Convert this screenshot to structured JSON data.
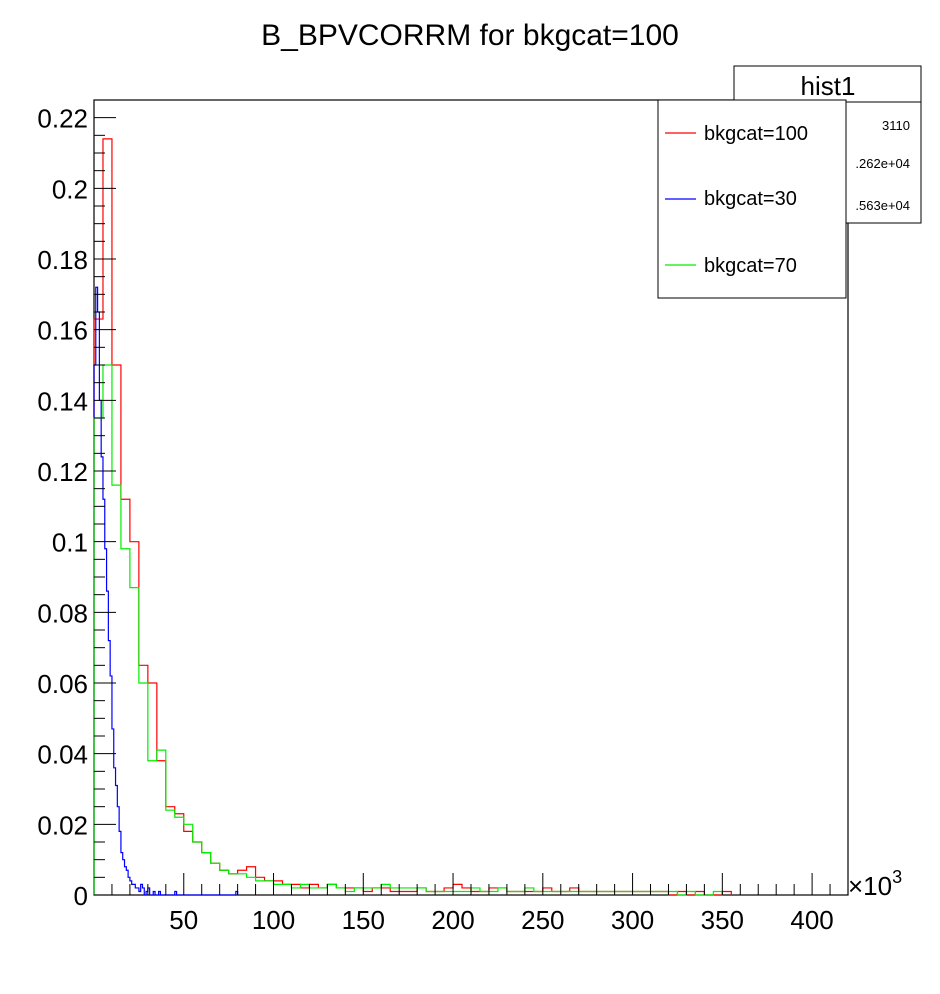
{
  "chart_data": {
    "type": "step-histogram",
    "title": "B_BPVCORRM for bkgcat=100",
    "xlabel": "",
    "ylabel": "",
    "x_exponent_label": "×10",
    "x_exponent_power": "3",
    "x_scale": 1000,
    "xlim": [
      0,
      420000
    ],
    "ylim": [
      0,
      0.225
    ],
    "x_ticks": [
      50000,
      100000,
      150000,
      200000,
      250000,
      300000,
      350000,
      400000
    ],
    "x_tick_labels": [
      "50",
      "100",
      "150",
      "200",
      "250",
      "300",
      "350",
      "400"
    ],
    "y_ticks": [
      0,
      0.02,
      0.04,
      0.06,
      0.08,
      0.1,
      0.12,
      0.14,
      0.16,
      0.18,
      0.2,
      0.22
    ],
    "y_tick_labels": [
      "0",
      "0.02",
      "0.04",
      "0.06",
      "0.08",
      "0.1",
      "0.12",
      "0.14",
      "0.16",
      "0.18",
      "0.2",
      "0.22"
    ],
    "legend_position": "top-right",
    "stats_box": {
      "title": "hist1",
      "values": [
        "3110",
        ".262e+04",
        ".563e+04"
      ]
    },
    "series": [
      {
        "name": "bkgcat=100",
        "color": "#ff0000",
        "bin_width": 5000,
        "x_start": 0,
        "values": [
          0.163,
          0.214,
          0.15,
          0.112,
          0.1,
          0.065,
          0.06,
          0.038,
          0.025,
          0.023,
          0.018,
          0.015,
          0.012,
          0.009,
          0.007,
          0.006,
          0.007,
          0.008,
          0.005,
          0.004,
          0.004,
          0.003,
          0.003,
          0.002,
          0.003,
          0.002,
          0.003,
          0.002,
          0.002,
          0.002,
          0.001,
          0.002,
          0.002,
          0.001,
          0.001,
          0.001,
          0.002,
          0.001,
          0.001,
          0.002,
          0.003,
          0.002,
          0.001,
          0.001,
          0.002,
          0.002,
          0.001,
          0.001,
          0.001,
          0.001,
          0.002,
          0.001,
          0.001,
          0.002,
          0.001,
          0.001,
          0.001,
          0.001,
          0.001,
          0.001,
          0.001,
          0.001,
          0.001,
          0.001,
          0.0,
          0.001,
          0.0,
          0.001,
          0.0,
          0.0,
          0.001
        ]
      },
      {
        "name": "bkgcat=30",
        "color": "#0000ff",
        "bin_width": 1000,
        "x_start": 0,
        "values": [
          0.15,
          0.172,
          0.165,
          0.14,
          0.124,
          0.112,
          0.098,
          0.086,
          0.072,
          0.062,
          0.047,
          0.036,
          0.031,
          0.025,
          0.018,
          0.012,
          0.01,
          0.008,
          0.007,
          0.005,
          0.004,
          0.003,
          0.003,
          0.002,
          0.002,
          0.001,
          0.003,
          0.002,
          0.0,
          0.001,
          0.002,
          0.0,
          0.0,
          0.001,
          0.0,
          0.0,
          0.001,
          0.0,
          0.0,
          0.0,
          0.0,
          0.0,
          0.0,
          0.0,
          0.0,
          0.001,
          0.0,
          0.0,
          0.0,
          0.0,
          0.0,
          0.0,
          0.0,
          0.0,
          0.0,
          0.0,
          0.0,
          0.0,
          0.0,
          0.0,
          0.0,
          0.0,
          0.0,
          0.0,
          0.0,
          0.0,
          0.0,
          0.0,
          0.0,
          0.0,
          0.0,
          0.0,
          0.0,
          0.0,
          0.0,
          0.0,
          0.0,
          0.0,
          0.0,
          0.001
        ]
      },
      {
        "name": "bkgcat=70",
        "color": "#00ee00",
        "bin_width": 5000,
        "x_start": 0,
        "values": [
          0.135,
          0.15,
          0.116,
          0.098,
          0.087,
          0.06,
          0.038,
          0.041,
          0.024,
          0.022,
          0.02,
          0.015,
          0.012,
          0.009,
          0.007,
          0.006,
          0.006,
          0.005,
          0.004,
          0.004,
          0.003,
          0.003,
          0.002,
          0.003,
          0.002,
          0.002,
          0.003,
          0.002,
          0.001,
          0.002,
          0.002,
          0.002,
          0.003,
          0.002,
          0.002,
          0.002,
          0.002,
          0.001,
          0.001,
          0.001,
          0.001,
          0.001,
          0.002,
          0.001,
          0.001,
          0.002,
          0.001,
          0.001,
          0.002,
          0.001,
          0.001,
          0.001,
          0.001,
          0.001,
          0.001,
          0.001,
          0.001,
          0.001,
          0.001,
          0.001,
          0.001,
          0.001,
          0.001,
          0.001,
          0.001,
          0.0,
          0.001,
          0.0,
          0.0,
          0.001
        ]
      }
    ]
  }
}
